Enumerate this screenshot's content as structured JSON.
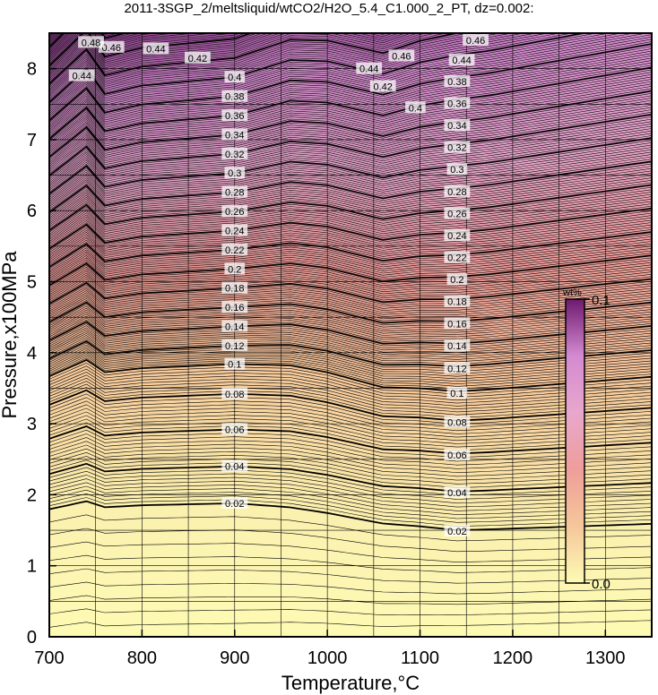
{
  "chart_data": {
    "type": "contour",
    "title": "2011-3SGP_2/meltsliquid/wtCO2/H2O_5.4_C1.000_2_PT, dz=0.002:",
    "xlabel": "Temperature,°C",
    "ylabel": "Pressure,x100MPa",
    "xlim": [
      700,
      1350
    ],
    "ylim": [
      0,
      8.5
    ],
    "x_ticks": [
      700,
      800,
      900,
      1000,
      1100,
      1200,
      1300
    ],
    "y_ticks": [
      0,
      1,
      2,
      3,
      4,
      5,
      6,
      7,
      8
    ],
    "grid": true,
    "contour_interval": 0.002,
    "labeled_interval": 0.02,
    "colorbar": {
      "label": "wt%",
      "min_label": "0.0",
      "max_label": "0.1",
      "min": 0.0,
      "max": 0.1,
      "colors": [
        "#fdfbb4",
        "#f5c79a",
        "#ee9e9a",
        "#e8a7cc",
        "#d48ad0",
        "#6e1a6e"
      ]
    },
    "contour_labels": [
      {
        "text": "0.02",
        "x": 900,
        "y": 1.88
      },
      {
        "text": "0.02",
        "x": 1140,
        "y": 1.49
      },
      {
        "text": "0.04",
        "x": 900,
        "y": 2.4
      },
      {
        "text": "0.04",
        "x": 1140,
        "y": 2.03
      },
      {
        "text": "0.06",
        "x": 900,
        "y": 2.92
      },
      {
        "text": "0.06",
        "x": 1140,
        "y": 2.56
      },
      {
        "text": "0.08",
        "x": 900,
        "y": 3.42
      },
      {
        "text": "0.08",
        "x": 1140,
        "y": 3.02
      },
      {
        "text": "0.1",
        "x": 900,
        "y": 3.84
      },
      {
        "text": "0.1",
        "x": 1140,
        "y": 3.43
      },
      {
        "text": "0.12",
        "x": 900,
        "y": 4.1
      },
      {
        "text": "0.12",
        "x": 1140,
        "y": 3.78
      },
      {
        "text": "0.14",
        "x": 900,
        "y": 4.37
      },
      {
        "text": "0.14",
        "x": 1140,
        "y": 4.1
      },
      {
        "text": "0.16",
        "x": 900,
        "y": 4.64
      },
      {
        "text": "0.16",
        "x": 1140,
        "y": 4.41
      },
      {
        "text": "0.18",
        "x": 900,
        "y": 4.91
      },
      {
        "text": "0.18",
        "x": 1140,
        "y": 4.72
      },
      {
        "text": "0.2",
        "x": 900,
        "y": 5.18
      },
      {
        "text": "0.2",
        "x": 1140,
        "y": 5.03
      },
      {
        "text": "0.22",
        "x": 900,
        "y": 5.45
      },
      {
        "text": "0.22",
        "x": 1140,
        "y": 5.34
      },
      {
        "text": "0.24",
        "x": 900,
        "y": 5.72
      },
      {
        "text": "0.24",
        "x": 1140,
        "y": 5.65
      },
      {
        "text": "0.26",
        "x": 900,
        "y": 5.99
      },
      {
        "text": "0.26",
        "x": 1140,
        "y": 5.96
      },
      {
        "text": "0.28",
        "x": 900,
        "y": 6.26
      },
      {
        "text": "0.28",
        "x": 1140,
        "y": 6.27
      },
      {
        "text": "0.3",
        "x": 900,
        "y": 6.53
      },
      {
        "text": "0.3",
        "x": 1140,
        "y": 6.58
      },
      {
        "text": "0.32",
        "x": 900,
        "y": 6.8
      },
      {
        "text": "0.32",
        "x": 1140,
        "y": 6.89
      },
      {
        "text": "0.34",
        "x": 900,
        "y": 7.07
      },
      {
        "text": "0.34",
        "x": 1140,
        "y": 7.2
      },
      {
        "text": "0.36",
        "x": 900,
        "y": 7.34
      },
      {
        "text": "0.36",
        "x": 1140,
        "y": 7.51
      },
      {
        "text": "0.38",
        "x": 900,
        "y": 7.61
      },
      {
        "text": "0.38",
        "x": 1140,
        "y": 7.82
      },
      {
        "text": "0.4",
        "x": 900,
        "y": 7.88
      },
      {
        "text": "0.4",
        "x": 1095,
        "y": 7.45
      },
      {
        "text": "0.42",
        "x": 860,
        "y": 8.15
      },
      {
        "text": "0.42",
        "x": 1060,
        "y": 7.75
      },
      {
        "text": "0.44",
        "x": 815,
        "y": 8.28
      },
      {
        "text": "0.44",
        "x": 1045,
        "y": 8.0
      },
      {
        "text": "0.44",
        "x": 1145,
        "y": 8.12
      },
      {
        "text": "0.46",
        "x": 767,
        "y": 8.3
      },
      {
        "text": "0.46",
        "x": 1080,
        "y": 8.18
      },
      {
        "text": "0.46",
        "x": 1160,
        "y": 8.4
      },
      {
        "text": "0.48",
        "x": 745,
        "y": 8.37
      },
      {
        "text": "0.44",
        "x": 735,
        "y": 7.9
      }
    ]
  }
}
